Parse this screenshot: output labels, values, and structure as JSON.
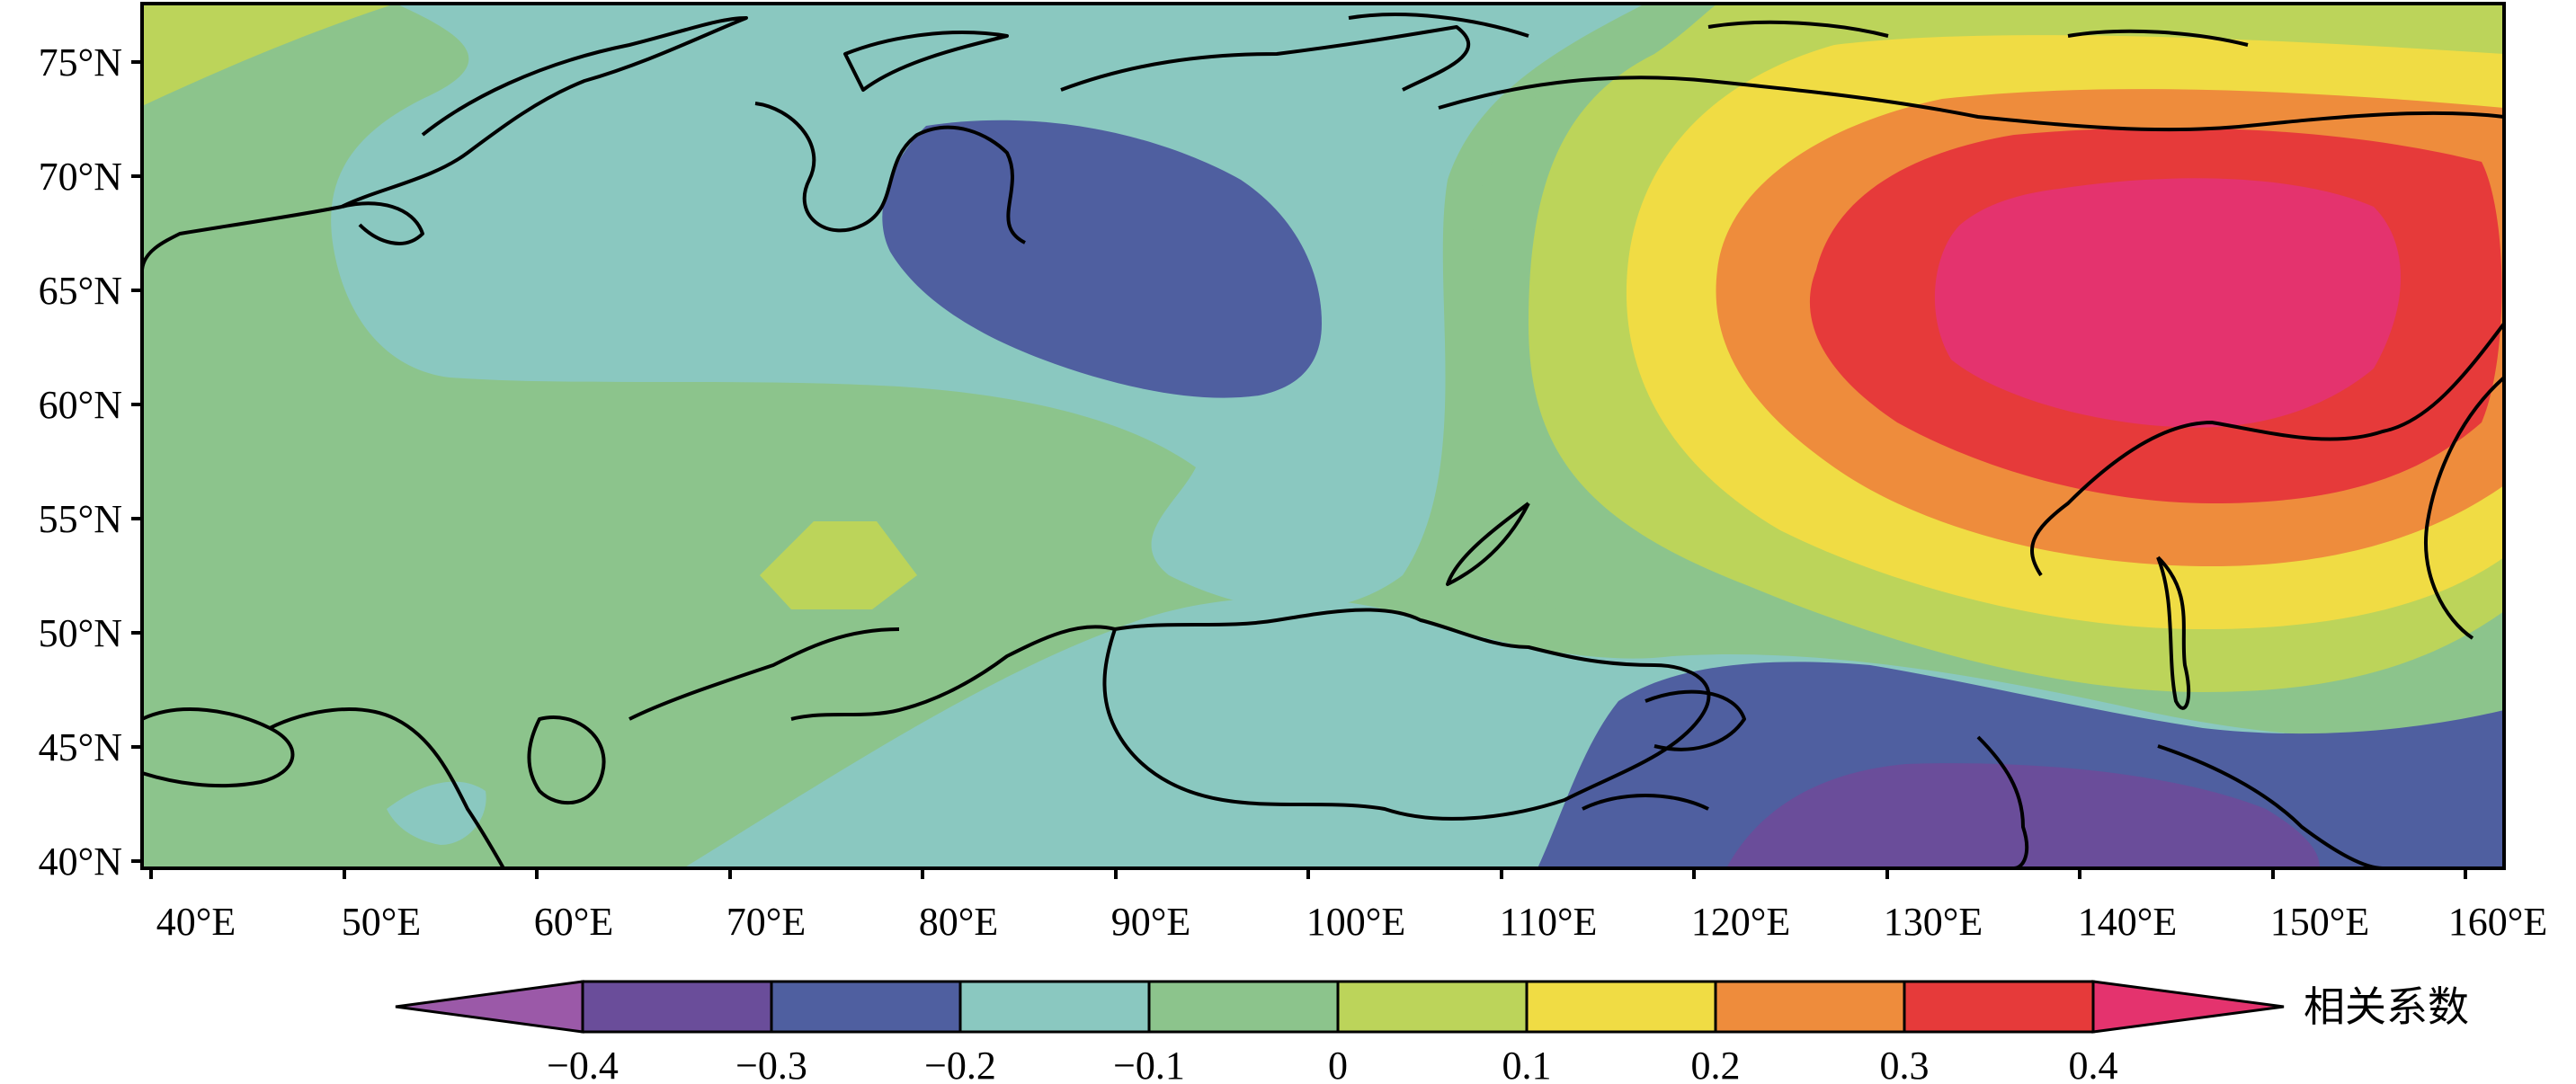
{
  "map": {
    "x_ticks": [
      "40°E",
      "50°E",
      "60°E",
      "70°E",
      "80°E",
      "90°E",
      "100°E",
      "110°E",
      "120°E",
      "130°E",
      "140°E",
      "150°E",
      "160°E"
    ],
    "y_ticks": [
      "75°N",
      "70°N",
      "65°N",
      "60°N",
      "55°N",
      "50°N",
      "45°N",
      "40°N"
    ]
  },
  "colorbar": {
    "title": "相关系数",
    "labels": [
      "−0.4",
      "−0.3",
      "−0.2",
      "−0.1",
      "0",
      "0.1",
      "0.2",
      "0.3",
      "0.4"
    ],
    "colors": [
      "#9b59a8",
      "#6a4d9a",
      "#4f5fa0",
      "#8ac8c0",
      "#8cc48c",
      "#bcd45a",
      "#f0dc44",
      "#ee8c3c",
      "#e63a3a",
      "#e4336e"
    ]
  }
}
